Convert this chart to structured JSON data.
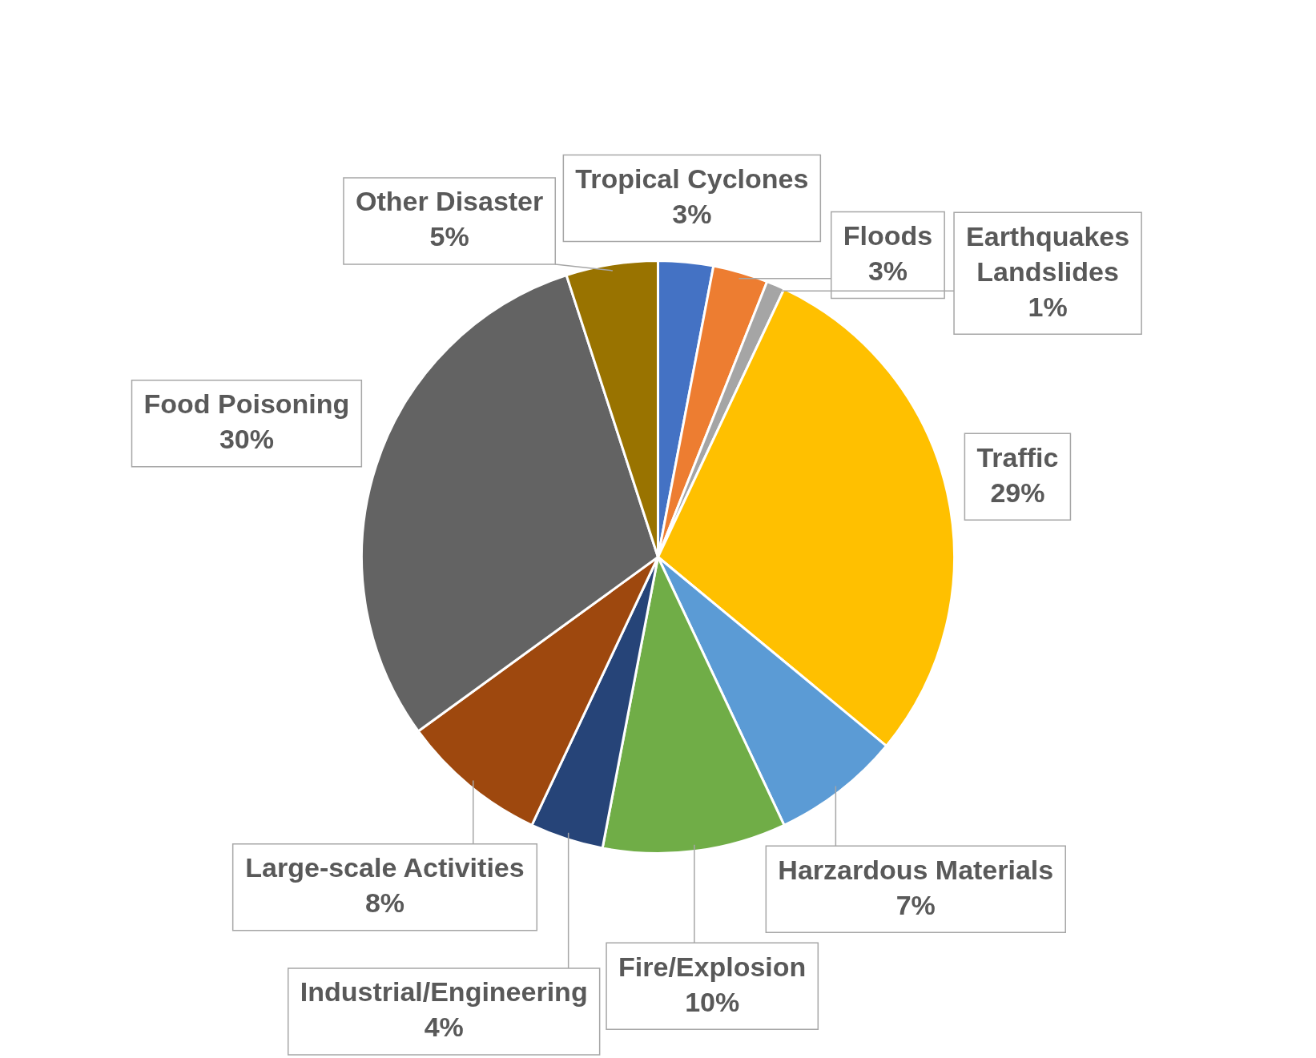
{
  "chart_data": {
    "type": "pie",
    "categories": [
      "Tropical Cyclones",
      "Floods",
      "Earthquakes Landslides",
      "Traffic",
      "Harzardous Materials",
      "Fire/Explosion",
      "Industrial/Engineering",
      "Large-scale Activities",
      "Food Poisoning",
      "Other Disaster"
    ],
    "values": [
      3,
      3,
      1,
      29,
      7,
      10,
      4,
      8,
      30,
      5
    ],
    "colors": [
      "#4472c4",
      "#ed7d31",
      "#a5a5a5",
      "#ffc000",
      "#5b9bd5",
      "#70ad47",
      "#264478",
      "#9e480e",
      "#636363",
      "#997300"
    ],
    "value_labels": [
      "3%",
      "3%",
      "1%",
      "29%",
      "7%",
      "10%",
      "4%",
      "8%",
      "30%",
      "5%"
    ],
    "legend": false
  }
}
